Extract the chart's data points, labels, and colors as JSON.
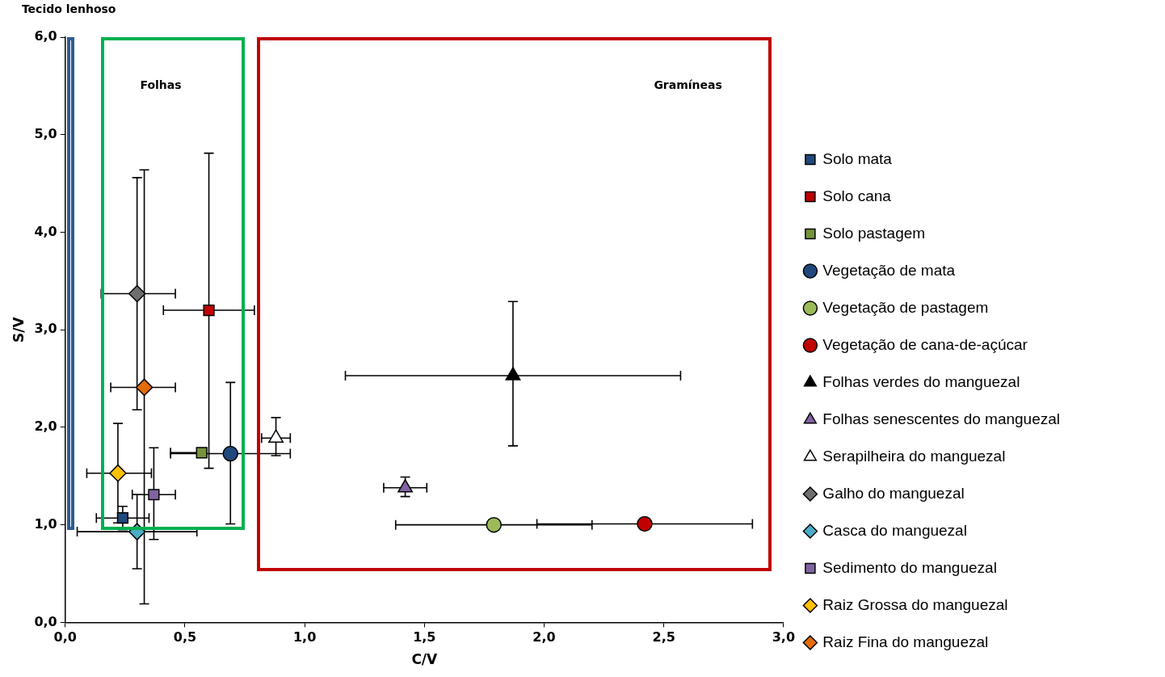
{
  "chart_data": {
    "type": "scatter",
    "xlabel": "C/V",
    "ylabel": "S/V",
    "xlim": [
      0,
      3
    ],
    "ylim": [
      0,
      6
    ],
    "xticks": [
      {
        "value": 0,
        "label": "0,0"
      },
      {
        "value": 0.5,
        "label": "0,5"
      },
      {
        "value": 1,
        "label": "1,0"
      },
      {
        "value": 1.5,
        "label": "1,5"
      },
      {
        "value": 2,
        "label": "2,0"
      },
      {
        "value": 2.5,
        "label": "2,5"
      },
      {
        "value": 3,
        "label": "3,0"
      }
    ],
    "yticks": [
      {
        "value": 0,
        "label": "0,0"
      },
      {
        "value": 1,
        "label": "1,0"
      },
      {
        "value": 2,
        "label": "2,0"
      },
      {
        "value": 3,
        "label": "3,0"
      },
      {
        "value": 4,
        "label": "4,0"
      },
      {
        "value": 5,
        "label": "5,0"
      },
      {
        "value": 6,
        "label": "6,0"
      }
    ],
    "legend": "right",
    "annotations": [
      "Tecido lenhoso",
      "Folhas",
      "Gramíneas"
    ],
    "series": [
      {
        "name": "Solo mata",
        "color": "#1f497d",
        "marker": "square",
        "x": [
          0.24
        ],
        "values": [
          1.07
        ],
        "errors": [
          [
            0.95,
            1.19
          ]
        ],
        "xerrors": [
          [
            0.13,
            0.35
          ]
        ]
      },
      {
        "name": "Solo cana",
        "color": "#c00000",
        "marker": "square",
        "x": [
          0.6
        ],
        "values": [
          3.2
        ],
        "errors": [
          [
            1.58,
            4.81
          ]
        ],
        "xerrors": [
          [
            0.41,
            0.79
          ]
        ]
      },
      {
        "name": "Solo pastagem",
        "color": "#77933c",
        "marker": "square",
        "x": [
          0.57
        ],
        "values": [
          1.74
        ],
        "xerrors": [
          [
            0.44,
            0.57
          ]
        ]
      },
      {
        "name": "Vegetação de mata",
        "color": "#1f497d",
        "marker": "circle",
        "x": [
          0.69
        ],
        "values": [
          1.73
        ],
        "errors": [
          [
            1.01,
            2.46
          ]
        ],
        "xerrors": [
          [
            0.44,
            0.94
          ]
        ]
      },
      {
        "name": "Vegetação de pastagem",
        "color": "#9bbb59",
        "marker": "circle",
        "x": [
          1.79
        ],
        "values": [
          1.0
        ],
        "xerrors": [
          [
            1.38,
            2.2
          ]
        ]
      },
      {
        "name": "Vegetação de cana-de-açúcar",
        "color": "#c00000",
        "marker": "circle",
        "x": [
          2.42
        ],
        "values": [
          1.01
        ],
        "xerrors": [
          [
            1.97,
            2.87
          ]
        ]
      },
      {
        "name": "Folhas verdes do manguezal",
        "color": "#000000",
        "marker": "triangle",
        "x": [
          1.87
        ],
        "values": [
          2.53
        ],
        "errors": [
          [
            1.81,
            3.29
          ]
        ],
        "xerrors": [
          [
            1.17,
            2.57
          ]
        ]
      },
      {
        "name": "Folhas senescentes do manguezal",
        "color": "#8064a2",
        "marker": "triangle",
        "x": [
          1.42
        ],
        "values": [
          1.38
        ],
        "errors": [
          [
            1.29,
            1.49
          ]
        ],
        "xerrors": [
          [
            1.33,
            1.51
          ]
        ]
      },
      {
        "name": "Serapilheira do manguezal",
        "color": "#ffffff",
        "marker": "triangle",
        "x": [
          0.88
        ],
        "values": [
          1.89
        ],
        "errors": [
          [
            1.71,
            2.1
          ]
        ],
        "xerrors": [
          [
            0.82,
            0.94
          ]
        ]
      },
      {
        "name": "Galho do manguezal",
        "color": "#6e6e6e",
        "marker": "diamond",
        "x": [
          0.3
        ],
        "values": [
          3.37
        ],
        "errors": [
          [
            2.18,
            4.56
          ]
        ],
        "xerrors": [
          [
            0.15,
            0.46
          ]
        ]
      },
      {
        "name": "Casca do manguezal",
        "color": "#4bacc6",
        "marker": "diamond",
        "x": [
          0.3
        ],
        "values": [
          0.93
        ],
        "errors": [
          [
            0.55,
            1.31
          ]
        ],
        "xerrors": [
          [
            0.05,
            0.55
          ]
        ]
      },
      {
        "name": "Sedimento do manguezal",
        "color": "#8064a2",
        "marker": "square",
        "x": [
          0.37
        ],
        "values": [
          1.31
        ],
        "errors": [
          [
            0.85,
            1.79
          ]
        ],
        "xerrors": [
          [
            0.28,
            0.46
          ]
        ]
      },
      {
        "name": "Raiz Grossa do manguezal",
        "color": "#ffc000",
        "marker": "diamond",
        "x": [
          0.22
        ],
        "values": [
          1.53
        ],
        "errors": [
          [
            1.02,
            2.04
          ]
        ],
        "xerrors": [
          [
            0.09,
            0.36
          ]
        ]
      },
      {
        "name": "Raiz Fina do manguezal",
        "color": "#e36c09",
        "marker": "diamond",
        "x": [
          0.33
        ],
        "values": [
          2.41
        ],
        "errors": [
          [
            0.19,
            4.64
          ]
        ],
        "xerrors": [
          [
            0.19,
            0.46
          ]
        ]
      }
    ]
  }
}
